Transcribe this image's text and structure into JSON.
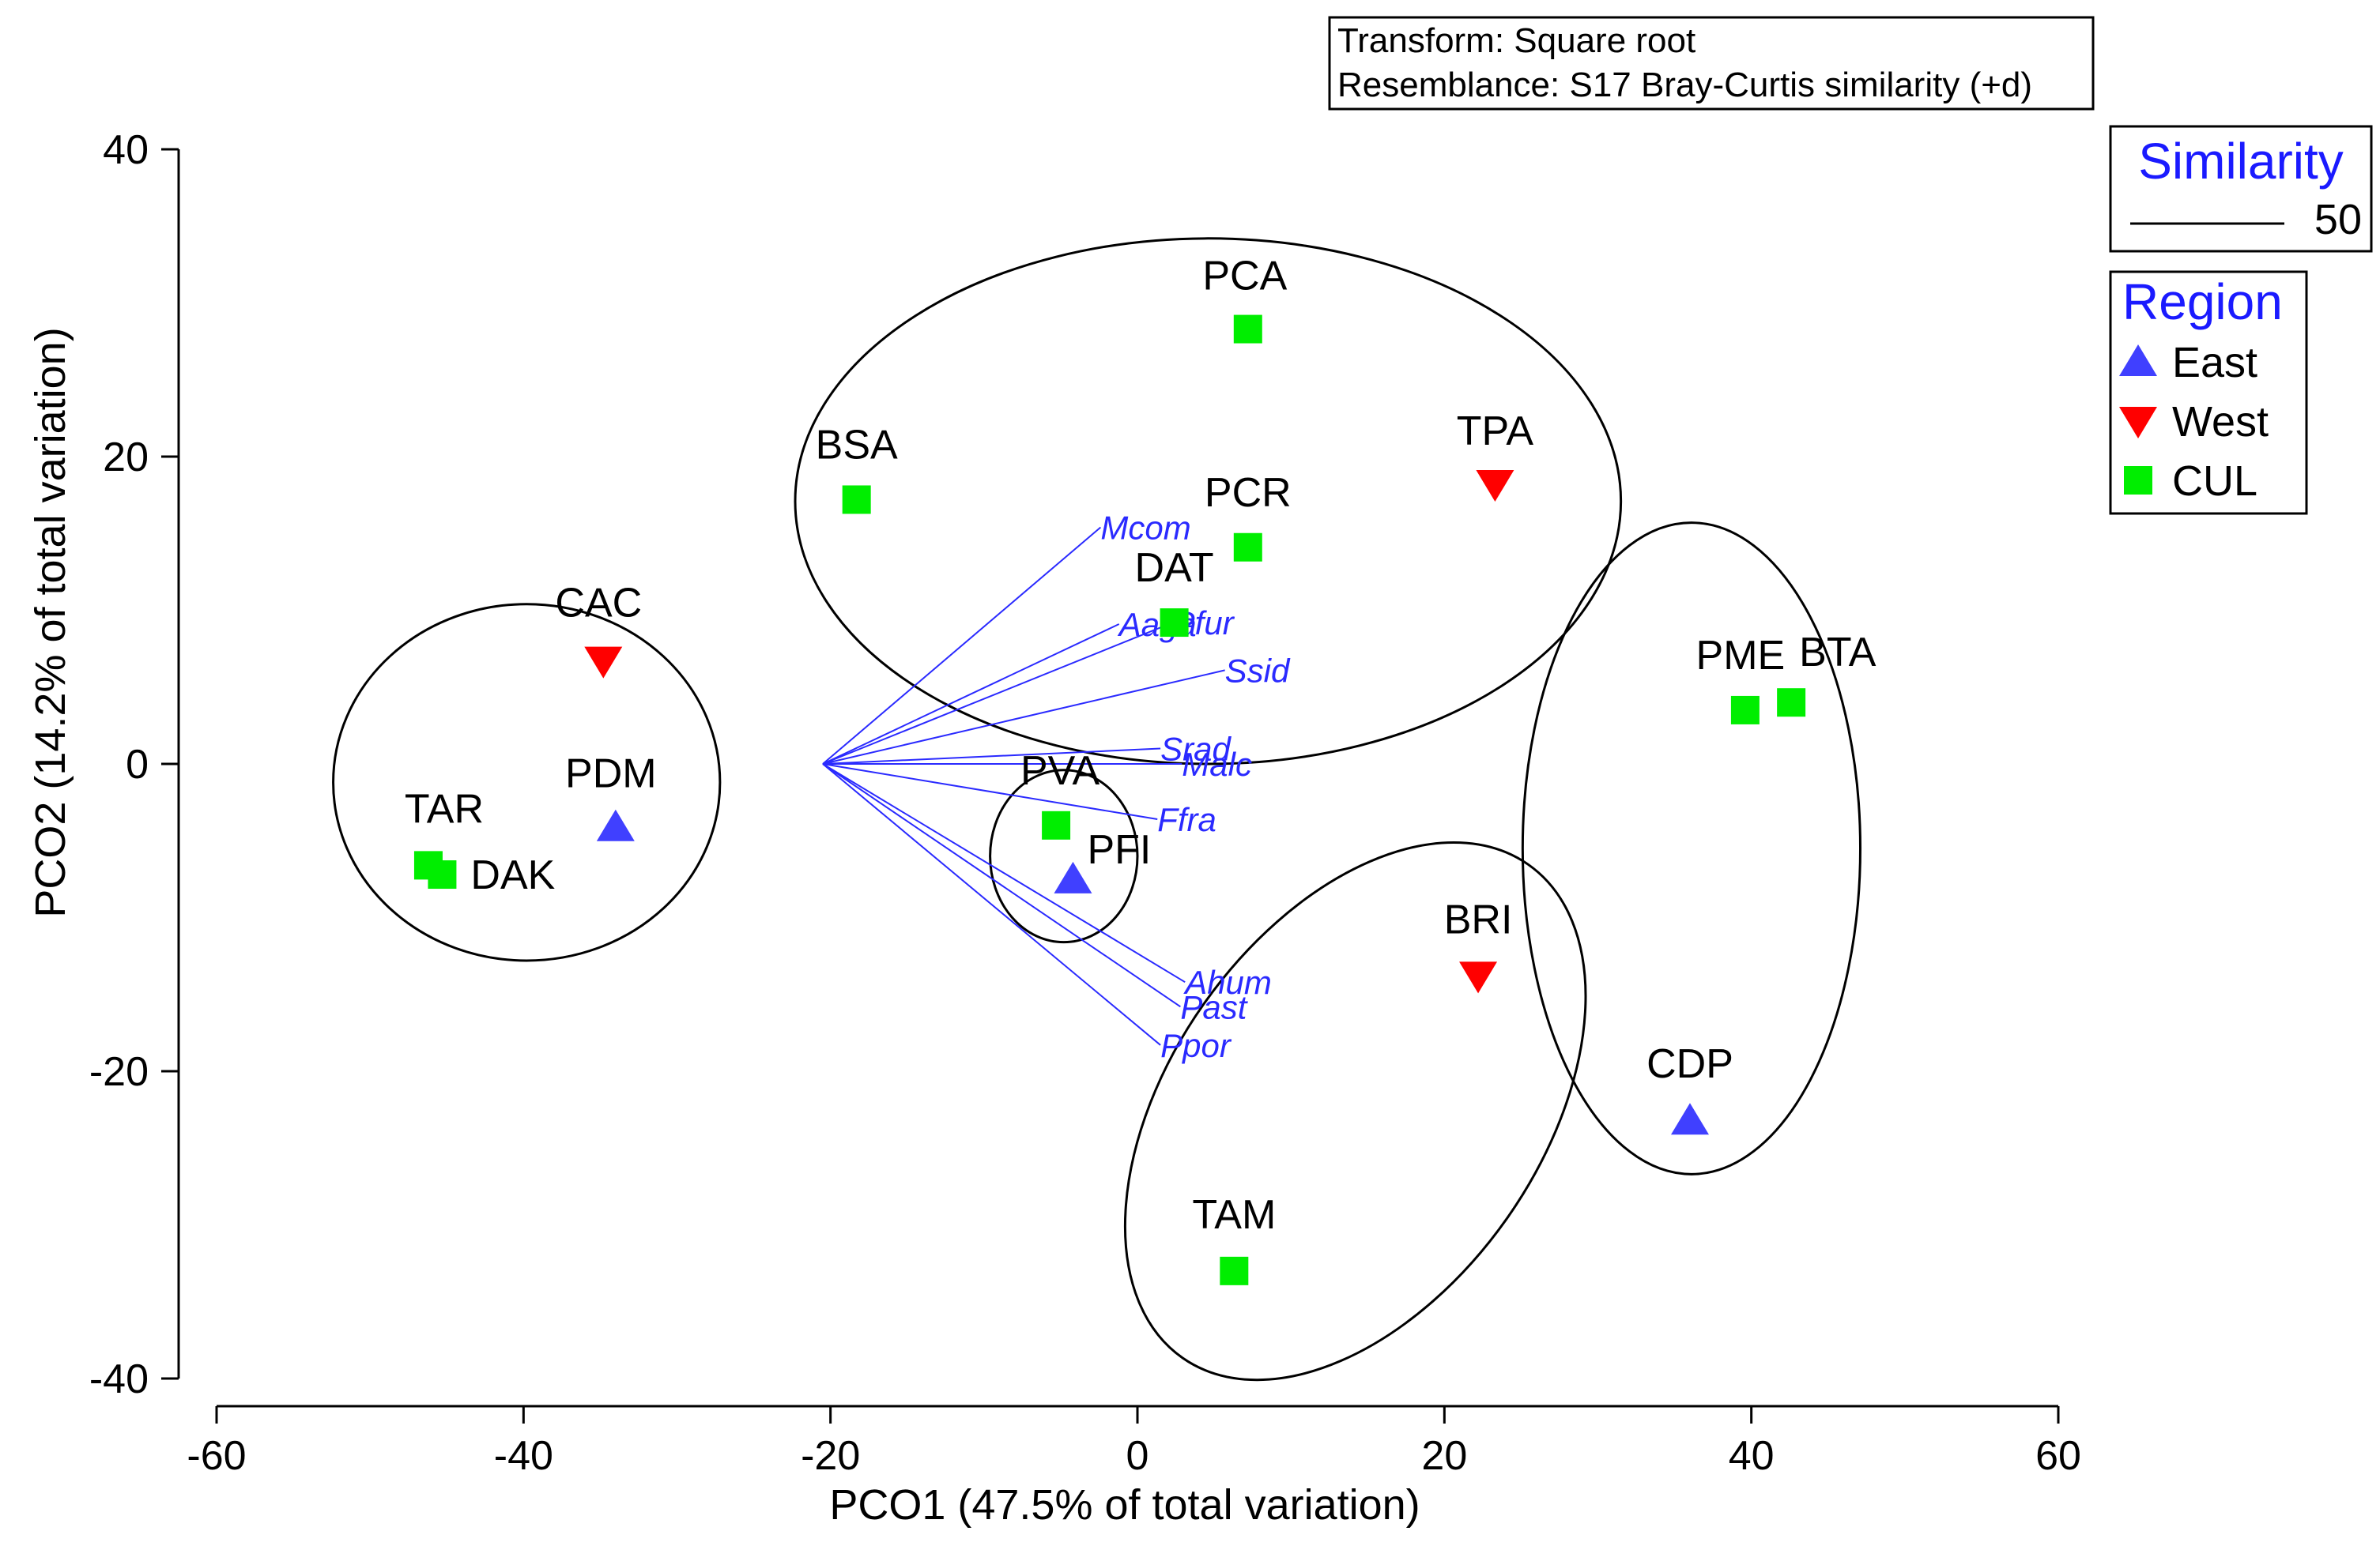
{
  "chart_data": {
    "type": "scatter",
    "info_box": [
      "Transform:  Square root",
      "Resemblance:  S17 Bray-Curtis similarity (+d)"
    ],
    "xlabel": "PCO1 (47.5% of total variation)",
    "ylabel": "PCO2 (14.2% of total variation)",
    "xlim": [
      -60,
      60
    ],
    "ylim": [
      -40,
      40
    ],
    "x_ticks": [
      -60,
      -40,
      -20,
      0,
      20,
      40,
      60
    ],
    "y_ticks": [
      -40,
      -20,
      0,
      20,
      40
    ],
    "x_tick_labels": [
      "-60",
      "-40",
      "-20",
      "0",
      "20",
      "40",
      "60"
    ],
    "y_tick_labels": [
      "-40",
      "-20",
      "0",
      "20",
      "40"
    ],
    "colors": {
      "East": "#4040ff",
      "West": "#ff0000",
      "CUL": "#00ee00",
      "vector": "#2a2aff",
      "legend_title": "#1a1aff",
      "outline": "#000000"
    },
    "legend": {
      "similarity_title": "Similarity",
      "similarity_value": "50",
      "region_title": "Region",
      "groups": [
        {
          "name": "East",
          "marker": "triangle-up"
        },
        {
          "name": "West",
          "marker": "triangle-down"
        },
        {
          "name": "CUL",
          "marker": "square"
        }
      ]
    },
    "points": [
      {
        "label": "PCA",
        "x": 7.2,
        "y": 28.3,
        "group": "CUL"
      },
      {
        "label": "TPA",
        "x": 23.3,
        "y": 18.2,
        "group": "West"
      },
      {
        "label": "BSA",
        "x": -18.3,
        "y": 17.2,
        "group": "CUL"
      },
      {
        "label": "PCR",
        "x": 7.2,
        "y": 14.1,
        "group": "CUL"
      },
      {
        "label": "DAT",
        "x": 2.4,
        "y": 9.2,
        "group": "CUL"
      },
      {
        "label": "CAC",
        "x": -34.8,
        "y": 6.7,
        "group": "West"
      },
      {
        "label": "PDM",
        "x": -34.0,
        "y": -4.1,
        "group": "East"
      },
      {
        "label": "TAR",
        "x": -46.2,
        "y": -6.6,
        "group": "CUL"
      },
      {
        "label": "DAK",
        "x": -45.3,
        "y": -7.2,
        "group": "CUL"
      },
      {
        "label": "PVA",
        "x": -5.3,
        "y": -4.0,
        "group": "CUL"
      },
      {
        "label": "PFI",
        "x": -4.2,
        "y": -7.5,
        "group": "East"
      },
      {
        "label": "PME",
        "x": 39.6,
        "y": 3.5,
        "group": "CUL"
      },
      {
        "label": "BTA",
        "x": 42.6,
        "y": 4.0,
        "group": "CUL"
      },
      {
        "label": "BRI",
        "x": 22.2,
        "y": -13.8,
        "group": "West"
      },
      {
        "label": "CDP",
        "x": 36.0,
        "y": -23.2,
        "group": "East"
      },
      {
        "label": "TAM",
        "x": 6.3,
        "y": -33.0,
        "group": "CUL"
      }
    ],
    "vector_origin": {
      "x": -20.5,
      "y": 0
    },
    "vectors": [
      {
        "label": "Mcom",
        "x": -2.4,
        "y": 15.4
      },
      {
        "label": "Aaga",
        "x": -1.2,
        "y": 9.1
      },
      {
        "label": "Pfur",
        "x": 2.3,
        "y": 9.2
      },
      {
        "label": "Ssid",
        "x": 5.7,
        "y": 6.1
      },
      {
        "label": "Srad",
        "x": 1.5,
        "y": 1.0
      },
      {
        "label": "Malc",
        "x": 2.9,
        "y": 0.0
      },
      {
        "label": "Ffra",
        "x": 1.3,
        "y": -3.6
      },
      {
        "label": "Ahum",
        "x": 3.1,
        "y": -14.2
      },
      {
        "label": "Past",
        "x": 2.8,
        "y": -15.8
      },
      {
        "label": "Ppor",
        "x": 1.5,
        "y": -18.3
      }
    ],
    "similarity_ellipses": [
      {
        "cx": -39.8,
        "cy": -1.2,
        "rx": 12.6,
        "ry": 11.6,
        "members": [
          "CAC",
          "PDM",
          "TAR",
          "DAK"
        ]
      },
      {
        "cx": 4.6,
        "cy": 17.1,
        "rx": 26.9,
        "ry": 17.1,
        "members": [
          "PCA",
          "TPA",
          "BSA",
          "PCR",
          "DAT"
        ]
      },
      {
        "cx": -4.8,
        "cy": -6.0,
        "rx": 4.8,
        "ry": 5.6,
        "members": [
          "PVA",
          "PFI"
        ]
      },
      {
        "cx": 36.1,
        "cy": -5.5,
        "rx": 11.0,
        "ry": 21.2,
        "members": [
          "PME",
          "BTA",
          "CDP"
        ]
      },
      {
        "cx": 14.2,
        "cy": -22.6,
        "rx": 12.1,
        "ry": 19.6,
        "rotate": 35,
        "members": [
          "BRI",
          "TAM"
        ]
      }
    ]
  }
}
